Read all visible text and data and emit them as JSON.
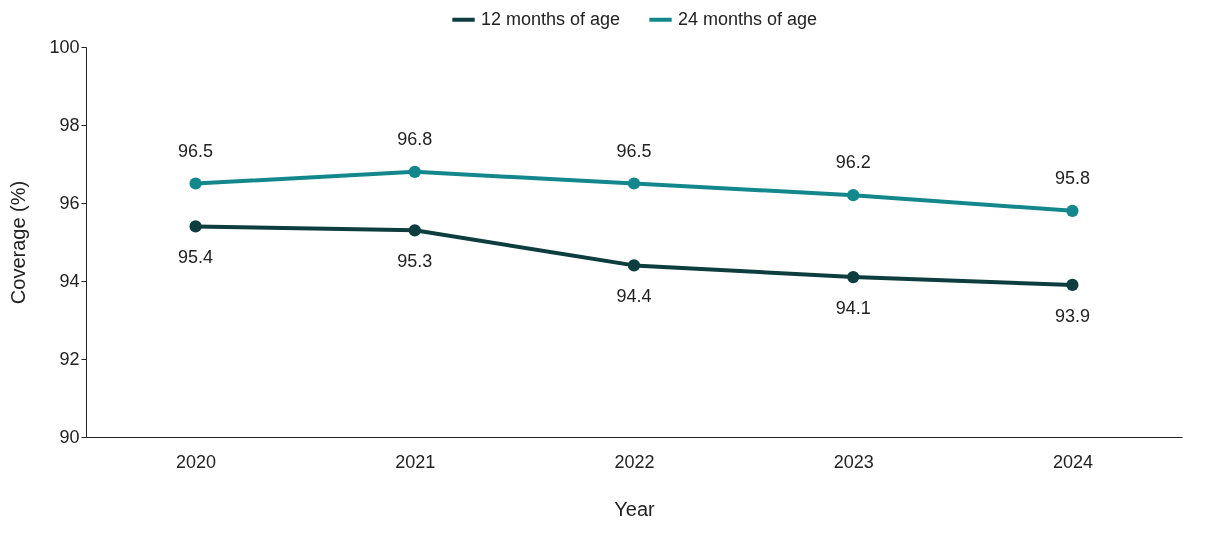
{
  "chart_data": {
    "type": "line",
    "xlabel": "Year",
    "ylabel": "Coverage (%)",
    "categories": [
      "2020",
      "2021",
      "2022",
      "2023",
      "2024"
    ],
    "series": [
      {
        "name": "12 months of age",
        "color": "#0d3d3f",
        "values": [
          95.4,
          95.3,
          94.4,
          94.1,
          93.9
        ]
      },
      {
        "name": "24 months of age",
        "color": "#12878c",
        "values": [
          96.5,
          96.8,
          96.5,
          96.2,
          95.8
        ]
      }
    ],
    "ylim": [
      90,
      100
    ],
    "yticks": [
      90,
      92,
      94,
      96,
      98,
      100
    ],
    "grid": false,
    "legend": "top",
    "marker": "circle",
    "line_style": "solid",
    "data_labels": true
  }
}
